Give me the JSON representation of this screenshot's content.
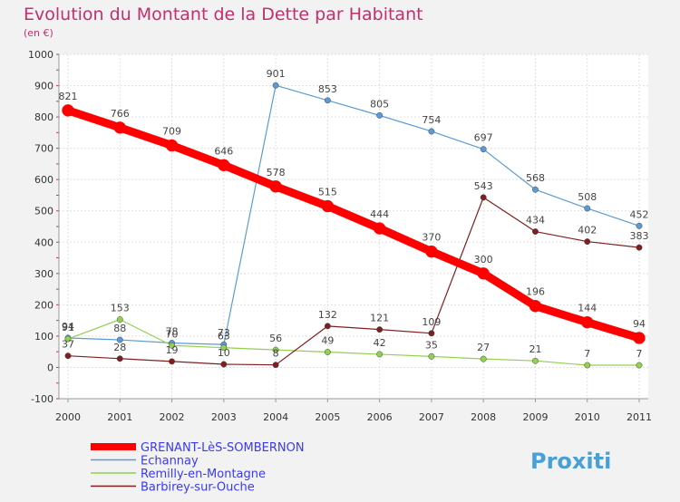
{
  "chart_data": {
    "type": "line",
    "title": "Evolution du Montant de la Dette par Habitant",
    "subtitle": "(en €)",
    "x": [
      "2000",
      "2001",
      "2002",
      "2003",
      "2004",
      "2005",
      "2006",
      "2007",
      "2008",
      "2009",
      "2010",
      "2011"
    ],
    "ylim": [
      -100,
      1000
    ],
    "yticks": [
      -100,
      0,
      100,
      200,
      300,
      400,
      500,
      600,
      700,
      800,
      900,
      1000
    ],
    "grid": true,
    "legend_position": "bottom-left",
    "series": [
      {
        "name": "Echannay",
        "color": "#5b9bd5",
        "values": [
          94,
          88,
          78,
          73,
          901,
          853,
          805,
          754,
          697,
          568,
          508,
          452
        ]
      },
      {
        "name": "Remilly-en-Montagne",
        "color": "#92d050",
        "values": [
          91,
          153,
          70,
          63,
          56,
          49,
          42,
          35,
          27,
          21,
          7,
          7
        ]
      },
      {
        "name": "Barbirey-sur-Ouche",
        "color": "#7f1f1f",
        "values": [
          37,
          28,
          19,
          10,
          8,
          132,
          121,
          109,
          543,
          434,
          402,
          383
        ]
      },
      {
        "name": "GRENANT-LèS-SOMBERNON",
        "color": "#ff0000",
        "values": [
          821,
          766,
          709,
          646,
          578,
          515,
          444,
          370,
          300,
          196,
          144,
          94
        ]
      }
    ],
    "legend_order": [
      "GRENANT-LèS-SOMBERNON",
      "Echannay",
      "Remilly-en-Montagne",
      "Barbirey-sur-Ouche"
    ]
  },
  "logo": {
    "text": "Proxiti"
  },
  "colors": {
    "title": "#c0306e",
    "axis_text": "#333333",
    "grid": "#d9d9d9",
    "legend_text": "#3a3af0"
  }
}
